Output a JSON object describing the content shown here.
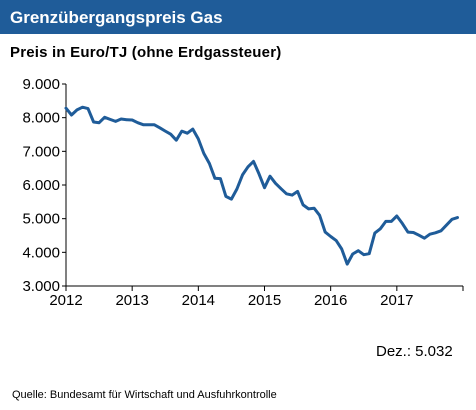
{
  "header": {
    "title": "Grenzübergangspreis Gas",
    "title_bg_color": "#1f5c99"
  },
  "chart_data": {
    "type": "line",
    "title": "Grenzübergangspreis Gas",
    "subtitle": "Preis in Euro/TJ (ohne Erdgassteuer)",
    "xlabel": "",
    "ylabel": "",
    "xlim": [
      2012,
      2018
    ],
    "ylim": [
      3000,
      9000
    ],
    "x_ticks": [
      2012,
      2013,
      2014,
      2015,
      2016,
      2017
    ],
    "y_ticks": [
      3000,
      4000,
      5000,
      6000,
      7000,
      8000,
      9000
    ],
    "y_tick_labels": [
      "3.000",
      "4.000",
      "5.000",
      "6.000",
      "7.000",
      "8.000",
      "9.000"
    ],
    "x_tick_labels": [
      "2012",
      "2013",
      "2014",
      "2015",
      "2016",
      "2017"
    ],
    "grid": false,
    "line_color": "#1f5c99",
    "series": [
      {
        "x": [
          2012.0,
          2012.083,
          2012.167,
          2012.25,
          2012.333,
          2012.417,
          2012.5,
          2012.583,
          2012.667,
          2012.75,
          2012.833,
          2012.917,
          2013.0,
          2013.083,
          2013.167,
          2013.25,
          2013.333,
          2013.417,
          2013.5,
          2013.583,
          2013.667,
          2013.75,
          2013.833,
          2013.917,
          2014.0,
          2014.083,
          2014.167,
          2014.25,
          2014.333,
          2014.417,
          2014.5,
          2014.583,
          2014.667,
          2014.75,
          2014.833,
          2014.917,
          2015.0,
          2015.083,
          2015.167,
          2015.25,
          2015.333,
          2015.417,
          2015.5,
          2015.583,
          2015.667,
          2015.75,
          2015.833,
          2015.917,
          2016.0,
          2016.083,
          2016.167,
          2016.25,
          2016.333,
          2016.417,
          2016.5,
          2016.583,
          2016.667,
          2016.75,
          2016.833,
          2016.917,
          2017.0,
          2017.083,
          2017.167,
          2017.25,
          2017.333,
          2017.417,
          2017.5,
          2017.583,
          2017.667,
          2017.75,
          2017.833,
          2017.917
        ],
        "values": [
          8280,
          8080,
          8230,
          8310,
          8270,
          7870,
          7850,
          8010,
          7950,
          7890,
          7960,
          7940,
          7930,
          7850,
          7790,
          7790,
          7790,
          7700,
          7600,
          7510,
          7330,
          7600,
          7540,
          7660,
          7370,
          6940,
          6640,
          6200,
          6190,
          5660,
          5580,
          5880,
          6300,
          6540,
          6700,
          6330,
          5920,
          6260,
          6050,
          5890,
          5740,
          5700,
          5810,
          5410,
          5290,
          5310,
          5100,
          4600,
          4470,
          4350,
          4100,
          3650,
          3950,
          4050,
          3930,
          3960,
          4570,
          4700,
          4920,
          4920,
          5080,
          4860,
          4600,
          4590,
          4510,
          4420,
          4540,
          4580,
          4640,
          4810,
          4980,
          5032
        ]
      }
    ]
  },
  "footnote": "Dez.: 5.032",
  "source": "Quelle: Bundesamt  für Wirtschaft und Ausfuhrkontrolle"
}
